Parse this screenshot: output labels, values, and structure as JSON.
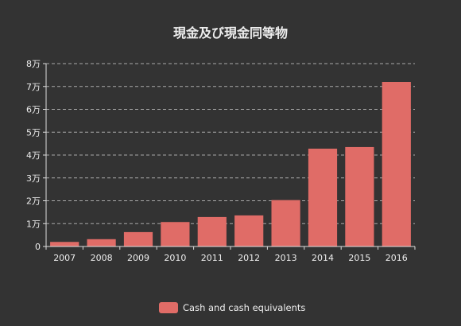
{
  "chart_data": {
    "type": "bar",
    "title": "現金及び現金同等物",
    "categories": [
      "2007",
      "2008",
      "2009",
      "2010",
      "2011",
      "2012",
      "2013",
      "2014",
      "2015",
      "2016"
    ],
    "series": [
      {
        "name": "Cash and cash equivalents",
        "values": [
          2000,
          3200,
          6300,
          10700,
          12900,
          13600,
          20300,
          42800,
          43500,
          72000
        ],
        "color": "#e06c67"
      }
    ],
    "ylim": [
      0,
      80000
    ],
    "y_ticks": [
      0,
      10000,
      20000,
      30000,
      40000,
      50000,
      60000,
      70000,
      80000
    ],
    "y_tick_labels": [
      "0",
      "1万",
      "2万",
      "3万",
      "4万",
      "5万",
      "6万",
      "7万",
      "8万"
    ],
    "grid": true,
    "legend_position": "bottom-center"
  },
  "colors": {
    "background": "#333333",
    "text": "#eeeeee",
    "axis": "#dddddd",
    "grid": "#aaaaaa",
    "bar": "#e06c67"
  }
}
